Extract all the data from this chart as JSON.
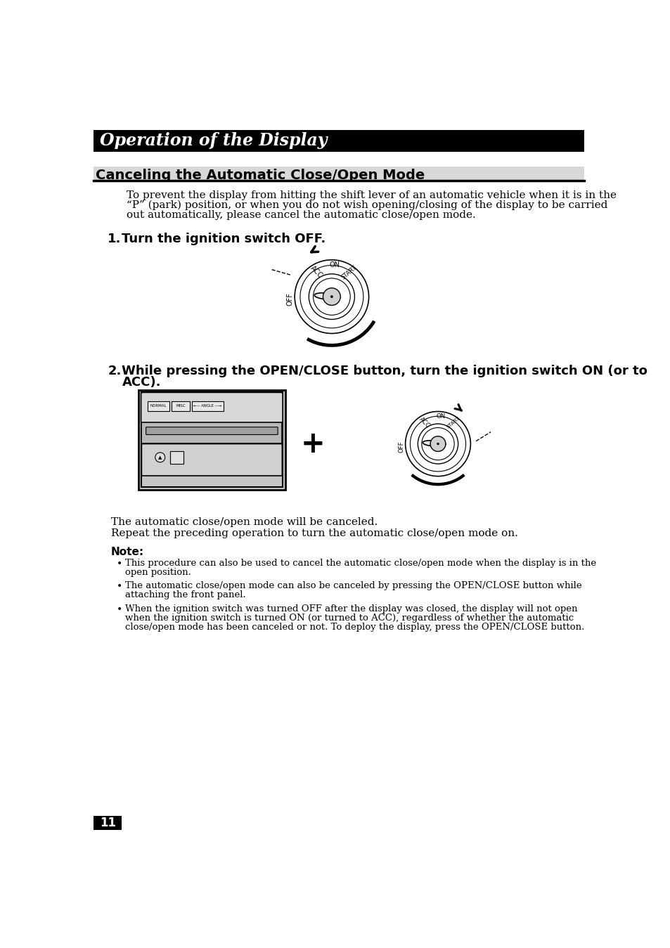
{
  "bg_color": "#ffffff",
  "header_bg": "#000000",
  "header_text": "Operation of the Display",
  "header_text_color": "#ffffff",
  "section_title": "Canceling the Automatic Close/Open Mode",
  "section_title_color": "#000000",
  "para1_line1": "To prevent the display from hitting the shift lever of an automatic vehicle when it is in the",
  "para1_line2": "“P” (park) position, or when you do not wish opening/closing of the display to be carried",
  "para1_line3": "out automatically, please cancel the automatic close/open mode.",
  "step1_label": "1.",
  "step1_text": "Turn the ignition switch OFF.",
  "step2_label": "2.",
  "step2_line1": "While pressing the OPEN/CLOSE button, turn the ignition switch ON (or to",
  "step2_line2": "ACC).",
  "auto_cancel_text": "The automatic close/open mode will be canceled.",
  "repeat_text": "Repeat the preceding operation to turn the automatic close/open mode on.",
  "note_label": "Note:",
  "bullet1_line1": "This procedure can also be used to cancel the automatic close/open mode when the display is in the",
  "bullet1_line2": "open position.",
  "bullet2_line1": "The automatic close/open mode can also be canceled by pressing the OPEN/CLOSE button while",
  "bullet2_line2": "attaching the front panel.",
  "bullet3_line1": "When the ignition switch was turned OFF after the display was closed, the display will not open",
  "bullet3_line2": "when the ignition switch is turned ON (or turned to ACC), regardless of whether the automatic",
  "bullet3_line3": "close/open mode has been canceled or not. To deploy the display, press the OPEN/CLOSE button.",
  "page_number": "11",
  "page_bg": "#000000",
  "page_text_color": "#ffffff"
}
